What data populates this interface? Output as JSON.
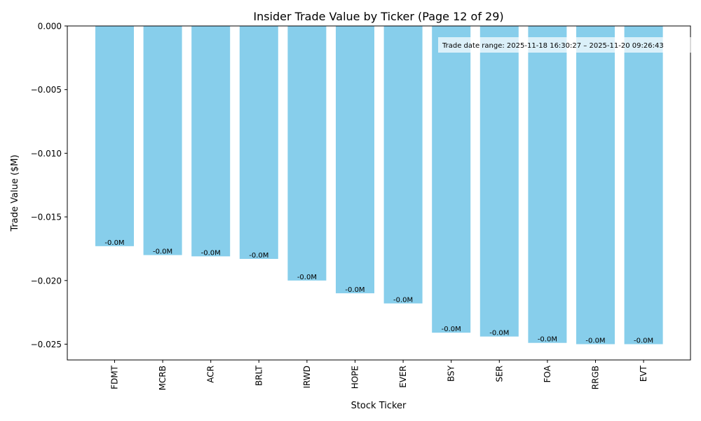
{
  "chart_data": {
    "type": "bar",
    "title": "Insider Trade Value by Ticker (Page 12 of 29)",
    "xlabel": "Stock Ticker",
    "ylabel": "Trade Value ($M)",
    "categories": [
      "FDMT",
      "MCRB",
      "ACR",
      "BRLT",
      "IRWD",
      "HOPE",
      "EVER",
      "BSY",
      "SER",
      "FOA",
      "RRGB",
      "EVT"
    ],
    "values": [
      -0.0173,
      -0.018,
      -0.0181,
      -0.0183,
      -0.02,
      -0.021,
      -0.0218,
      -0.0241,
      -0.0244,
      -0.0249,
      -0.025,
      -0.025
    ],
    "data_labels": [
      "-0.0M",
      "-0.0M",
      "-0.0M",
      "-0.0M",
      "-0.0M",
      "-0.0M",
      "-0.0M",
      "-0.0M",
      "-0.0M",
      "-0.0M",
      "-0.0M",
      "-0.0M"
    ],
    "ylim": [
      -0.02624,
      0.0
    ],
    "yticks": [
      0.0,
      -0.005,
      -0.01,
      -0.015,
      -0.02,
      -0.025
    ],
    "ytick_labels": [
      "0.000",
      "−0.005",
      "−0.010",
      "−0.015",
      "−0.020",
      "−0.025"
    ],
    "grid": false,
    "bar_color": "#87CEEB",
    "annotation": "Trade date range: 2025-11-18 16:30:27 – 2025-11-20 09:26:43"
  }
}
